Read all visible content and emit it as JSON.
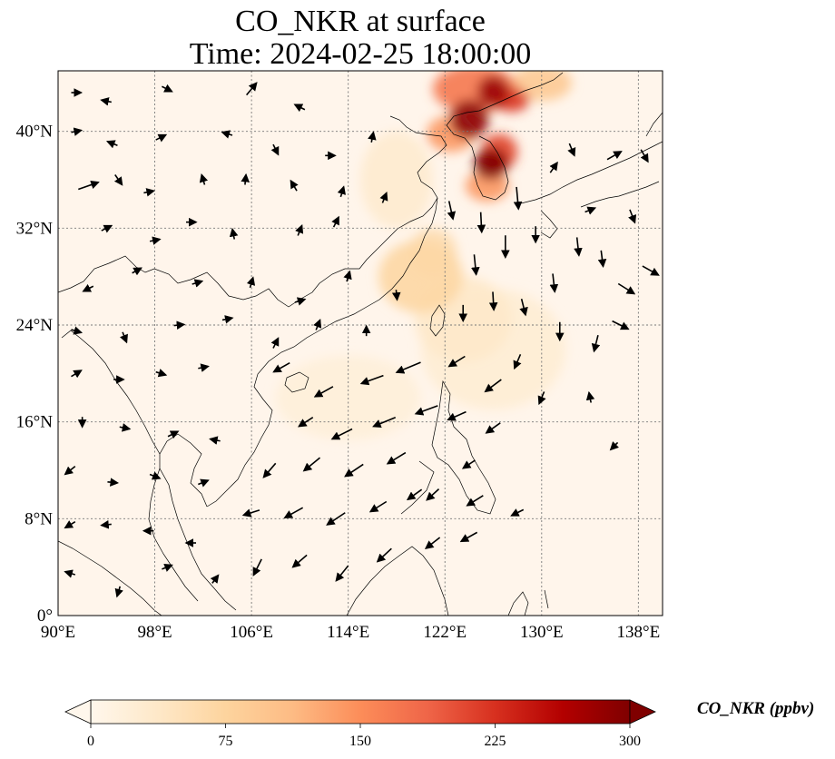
{
  "map": {
    "title_line1": "CO_NKR at surface",
    "title_line2": "Time: 2024-02-25 18:00:00",
    "extent": {
      "lon_min": 90,
      "lon_max": 140,
      "lat_min": 0,
      "lat_max": 45
    },
    "lon_ticks": [
      {
        "value": 90,
        "label": "90°E"
      },
      {
        "value": 98,
        "label": "98°E"
      },
      {
        "value": 106,
        "label": "106°E"
      },
      {
        "value": 114,
        "label": "114°E"
      },
      {
        "value": 122,
        "label": "122°E"
      },
      {
        "value": 130,
        "label": "130°E"
      },
      {
        "value": 138,
        "label": "138°E"
      }
    ],
    "lat_ticks": [
      {
        "value": 0,
        "label": "0°"
      },
      {
        "value": 8,
        "label": "8°N"
      },
      {
        "value": 16,
        "label": "16°N"
      },
      {
        "value": 24,
        "label": "24°N"
      },
      {
        "value": 32,
        "label": "32°N"
      },
      {
        "value": 40,
        "label": "40°N"
      }
    ],
    "gridlines": true,
    "background_color": "#fff5eb",
    "coastline_color": "#000000"
  },
  "colorbar": {
    "label": "CO_NKR (ppbv)",
    "min": 0,
    "max": 300,
    "colormap": "OrRd",
    "extend": "both",
    "ticks": [
      {
        "value": 0,
        "label": "0"
      },
      {
        "value": 75,
        "label": "75"
      },
      {
        "value": 150,
        "label": "150"
      },
      {
        "value": 225,
        "label": "225"
      },
      {
        "value": 300,
        "label": "300"
      }
    ],
    "stops": [
      "#fff7ec",
      "#fee8c8",
      "#fdd49e",
      "#fdbb84",
      "#fc8d59",
      "#ef6548",
      "#d7301f",
      "#b30000",
      "#7f0000"
    ]
  },
  "field_blobs": [
    {
      "lon": 124.5,
      "lat": 43.5,
      "r_lon": 3.5,
      "r_lat": 2.0,
      "value": 170
    },
    {
      "lon": 124.0,
      "lat": 41.0,
      "r_lon": 1.6,
      "r_lat": 1.6,
      "value": 290
    },
    {
      "lon": 126.0,
      "lat": 43.3,
      "r_lon": 1.3,
      "r_lat": 1.3,
      "value": 280
    },
    {
      "lon": 127.5,
      "lat": 42.6,
      "r_lon": 1.5,
      "r_lat": 1.0,
      "value": 220
    },
    {
      "lon": 125.8,
      "lat": 37.3,
      "r_lon": 1.4,
      "r_lat": 1.3,
      "value": 300
    },
    {
      "lon": 126.5,
      "lat": 38.3,
      "r_lon": 1.5,
      "r_lat": 1.5,
      "value": 210
    },
    {
      "lon": 122.5,
      "lat": 39.8,
      "r_lon": 2.0,
      "r_lat": 1.5,
      "value": 140
    },
    {
      "lon": 125.5,
      "lat": 35.5,
      "r_lon": 1.8,
      "r_lat": 1.3,
      "value": 140
    },
    {
      "lon": 130.0,
      "lat": 44.0,
      "r_lon": 2.5,
      "r_lat": 1.5,
      "value": 90
    },
    {
      "lon": 120.0,
      "lat": 28.0,
      "r_lon": 3.5,
      "r_lat": 3.0,
      "value": 70
    },
    {
      "lon": 121.0,
      "lat": 30.0,
      "r_lon": 2.0,
      "r_lat": 2.0,
      "value": 60
    },
    {
      "lon": 123.5,
      "lat": 24.5,
      "r_lon": 4.0,
      "r_lat": 3.5,
      "value": 35
    },
    {
      "lon": 126.0,
      "lat": 22.0,
      "r_lon": 6.0,
      "r_lat": 5.0,
      "value": 25
    },
    {
      "lon": 114.0,
      "lat": 18.0,
      "r_lon": 6.0,
      "r_lat": 3.5,
      "value": 20
    },
    {
      "lon": 118.0,
      "lat": 36.0,
      "r_lon": 3.0,
      "r_lat": 4.0,
      "value": 30
    }
  ],
  "wind_vectors": [
    {
      "lon": 91.5,
      "lat": 43.2,
      "u": 1.0,
      "v": 0.0
    },
    {
      "lon": 94.0,
      "lat": 42.5,
      "u": -1.0,
      "v": 0.2
    },
    {
      "lon": 99.0,
      "lat": 43.5,
      "u": 1.0,
      "v": -0.5
    },
    {
      "lon": 106.0,
      "lat": 43.5,
      "u": 1.0,
      "v": 1.2
    },
    {
      "lon": 110.0,
      "lat": 42.0,
      "u": -1.0,
      "v": 0.5
    },
    {
      "lon": 91.5,
      "lat": 40.0,
      "u": 1.0,
      "v": 0.2
    },
    {
      "lon": 94.5,
      "lat": 39.0,
      "u": -1.0,
      "v": 0.4
    },
    {
      "lon": 98.5,
      "lat": 39.5,
      "u": 1.0,
      "v": 0.5
    },
    {
      "lon": 104.0,
      "lat": 39.8,
      "u": -1.0,
      "v": 0.3
    },
    {
      "lon": 108.0,
      "lat": 38.5,
      "u": 0.5,
      "v": -1.0
    },
    {
      "lon": 112.5,
      "lat": 38.0,
      "u": 1.0,
      "v": 0.0
    },
    {
      "lon": 116.0,
      "lat": 39.5,
      "u": 0.2,
      "v": 1.0
    },
    {
      "lon": 92.5,
      "lat": 35.5,
      "u": 2.0,
      "v": 0.7
    },
    {
      "lon": 95.0,
      "lat": 36.0,
      "u": 0.7,
      "v": -1.0
    },
    {
      "lon": 97.5,
      "lat": 35.0,
      "u": 1.0,
      "v": 0.2
    },
    {
      "lon": 102.0,
      "lat": 36.0,
      "u": -0.3,
      "v": 1.0
    },
    {
      "lon": 105.5,
      "lat": 36.0,
      "u": 0.1,
      "v": 1.0
    },
    {
      "lon": 109.5,
      "lat": 35.5,
      "u": -0.6,
      "v": 1.0
    },
    {
      "lon": 113.5,
      "lat": 35.0,
      "u": 0.3,
      "v": 1.0
    },
    {
      "lon": 117.0,
      "lat": 34.5,
      "u": 0.4,
      "v": 1.0
    },
    {
      "lon": 94.0,
      "lat": 32.0,
      "u": 1.0,
      "v": 0.5
    },
    {
      "lon": 98.0,
      "lat": 31.0,
      "u": 1.0,
      "v": 0.2
    },
    {
      "lon": 101.0,
      "lat": 32.5,
      "u": 1.0,
      "v": 0.0
    },
    {
      "lon": 104.5,
      "lat": 31.5,
      "u": -0.2,
      "v": 1.0
    },
    {
      "lon": 110.0,
      "lat": 31.8,
      "u": 0.4,
      "v": 1.0
    },
    {
      "lon": 113.0,
      "lat": 32.5,
      "u": 0.5,
      "v": 1.0
    },
    {
      "lon": 92.5,
      "lat": 27.0,
      "u": -1.0,
      "v": -0.5
    },
    {
      "lon": 96.5,
      "lat": 28.5,
      "u": 0.9,
      "v": 0.5
    },
    {
      "lon": 101.5,
      "lat": 27.5,
      "u": 1.0,
      "v": 0.3
    },
    {
      "lon": 106.0,
      "lat": 27.5,
      "u": 0.3,
      "v": 1.0
    },
    {
      "lon": 110.0,
      "lat": 26.0,
      "u": 1.0,
      "v": 0.3
    },
    {
      "lon": 114.0,
      "lat": 28.0,
      "u": 0.3,
      "v": 1.0
    },
    {
      "lon": 118.0,
      "lat": 26.5,
      "u": 0.1,
      "v": -1.0
    },
    {
      "lon": 91.5,
      "lat": 23.5,
      "u": 1.0,
      "v": -0.3
    },
    {
      "lon": 95.5,
      "lat": 23.0,
      "u": 0.4,
      "v": -1.0
    },
    {
      "lon": 100.0,
      "lat": 24.0,
      "u": 1.0,
      "v": 0.1
    },
    {
      "lon": 104.0,
      "lat": 24.5,
      "u": 1.0,
      "v": 0.2
    },
    {
      "lon": 108.0,
      "lat": 22.5,
      "u": 0.5,
      "v": 1.0
    },
    {
      "lon": 111.5,
      "lat": 24.0,
      "u": 0.4,
      "v": 1.0
    },
    {
      "lon": 115.5,
      "lat": 23.5,
      "u": 0.0,
      "v": 1.0
    },
    {
      "lon": 91.5,
      "lat": 20.0,
      "u": 1.0,
      "v": 0.6
    },
    {
      "lon": 95.0,
      "lat": 19.5,
      "u": 1.0,
      "v": 0.0
    },
    {
      "lon": 98.5,
      "lat": 20.0,
      "u": 1.0,
      "v": -0.3
    },
    {
      "lon": 102.0,
      "lat": 20.5,
      "u": 1.0,
      "v": 0.2
    },
    {
      "lon": 92.0,
      "lat": 16.0,
      "u": 0.0,
      "v": -1.0
    },
    {
      "lon": 95.5,
      "lat": 15.5,
      "u": 1.0,
      "v": -0.2
    },
    {
      "lon": 99.5,
      "lat": 15.0,
      "u": 1.0,
      "v": 0.5
    },
    {
      "lon": 103.0,
      "lat": 14.5,
      "u": -1.0,
      "v": 0.2
    },
    {
      "lon": 91.0,
      "lat": 12.0,
      "u": -1.0,
      "v": -0.8
    },
    {
      "lon": 94.5,
      "lat": 11.0,
      "u": 1.0,
      "v": -0.1
    },
    {
      "lon": 98.0,
      "lat": 11.5,
      "u": 1.0,
      "v": -0.4
    },
    {
      "lon": 102.0,
      "lat": 11.0,
      "u": 1.0,
      "v": 0.4
    },
    {
      "lon": 91.0,
      "lat": 7.5,
      "u": -1.0,
      "v": -0.6
    },
    {
      "lon": 94.0,
      "lat": 7.5,
      "u": -1.0,
      "v": -0.1
    },
    {
      "lon": 97.5,
      "lat": 7.0,
      "u": -1.0,
      "v": 0.0
    },
    {
      "lon": 101.0,
      "lat": 6.0,
      "u": -1.0,
      "v": 0.0
    },
    {
      "lon": 91.0,
      "lat": 3.5,
      "u": -1.0,
      "v": 0.3
    },
    {
      "lon": 95.0,
      "lat": 2.0,
      "u": -0.3,
      "v": -1.0
    },
    {
      "lon": 99.0,
      "lat": 4.0,
      "u": 1.0,
      "v": 0.4
    },
    {
      "lon": 103.0,
      "lat": 3.0,
      "u": 0.6,
      "v": 0.8
    },
    {
      "lon": 108.5,
      "lat": 20.5,
      "u": -1.6,
      "v": -0.9
    },
    {
      "lon": 112.0,
      "lat": 18.5,
      "u": -1.8,
      "v": -1.0
    },
    {
      "lon": 116.0,
      "lat": 19.5,
      "u": -2.2,
      "v": -0.8
    },
    {
      "lon": 119.0,
      "lat": 20.5,
      "u": -2.4,
      "v": -1.0
    },
    {
      "lon": 110.5,
      "lat": 16.0,
      "u": -1.4,
      "v": -0.9
    },
    {
      "lon": 113.5,
      "lat": 15.0,
      "u": -2.0,
      "v": -1.0
    },
    {
      "lon": 117.0,
      "lat": 16.0,
      "u": -2.2,
      "v": -0.9
    },
    {
      "lon": 120.5,
      "lat": 17.0,
      "u": -2.2,
      "v": -0.8
    },
    {
      "lon": 107.5,
      "lat": 12.0,
      "u": -1.2,
      "v": -1.4
    },
    {
      "lon": 111.0,
      "lat": 12.5,
      "u": -1.6,
      "v": -1.3
    },
    {
      "lon": 114.5,
      "lat": 12.0,
      "u": -1.8,
      "v": -1.2
    },
    {
      "lon": 118.0,
      "lat": 13.0,
      "u": -1.8,
      "v": -1.1
    },
    {
      "lon": 106.0,
      "lat": 8.5,
      "u": -1.6,
      "v": -0.5
    },
    {
      "lon": 109.5,
      "lat": 8.5,
      "u": -1.8,
      "v": -1.0
    },
    {
      "lon": 113.0,
      "lat": 8.0,
      "u": -1.8,
      "v": -1.2
    },
    {
      "lon": 116.5,
      "lat": 9.0,
      "u": -1.6,
      "v": -1.0
    },
    {
      "lon": 119.5,
      "lat": 10.0,
      "u": -1.4,
      "v": -1.0
    },
    {
      "lon": 110.0,
      "lat": 4.5,
      "u": -1.4,
      "v": -1.2
    },
    {
      "lon": 113.5,
      "lat": 3.5,
      "u": -1.2,
      "v": -1.5
    },
    {
      "lon": 117.0,
      "lat": 5.0,
      "u": -1.4,
      "v": -1.3
    },
    {
      "lon": 106.5,
      "lat": 4.0,
      "u": -0.8,
      "v": -1.6
    },
    {
      "lon": 123.0,
      "lat": 21.0,
      "u": -1.6,
      "v": -1.0
    },
    {
      "lon": 126.0,
      "lat": 19.0,
      "u": -1.6,
      "v": -1.2
    },
    {
      "lon": 123.0,
      "lat": 16.5,
      "u": -1.8,
      "v": -0.8
    },
    {
      "lon": 126.0,
      "lat": 15.5,
      "u": -1.4,
      "v": -1.0
    },
    {
      "lon": 124.0,
      "lat": 12.5,
      "u": -1.2,
      "v": -0.8
    },
    {
      "lon": 121.0,
      "lat": 10.0,
      "u": -1.2,
      "v": -1.1
    },
    {
      "lon": 124.5,
      "lat": 9.5,
      "u": -1.6,
      "v": -1.0
    },
    {
      "lon": 121.0,
      "lat": 6.0,
      "u": -1.4,
      "v": -1.1
    },
    {
      "lon": 124.0,
      "lat": 6.5,
      "u": -1.6,
      "v": -0.9
    },
    {
      "lon": 128.0,
      "lat": 8.5,
      "u": -1.2,
      "v": -0.6
    },
    {
      "lon": 124.5,
      "lat": 29.0,
      "u": 0.2,
      "v": -2.0
    },
    {
      "lon": 127.0,
      "lat": 30.5,
      "u": 0.0,
      "v": -2.2
    },
    {
      "lon": 129.5,
      "lat": 31.5,
      "u": 0.0,
      "v": -1.6
    },
    {
      "lon": 125.0,
      "lat": 32.5,
      "u": 0.1,
      "v": -2.0
    },
    {
      "lon": 128.0,
      "lat": 34.5,
      "u": 0.2,
      "v": -2.2
    },
    {
      "lon": 122.5,
      "lat": 33.5,
      "u": 0.4,
      "v": -1.8
    },
    {
      "lon": 123.5,
      "lat": 25.0,
      "u": 0.0,
      "v": -1.6
    },
    {
      "lon": 126.0,
      "lat": 26.0,
      "u": 0.1,
      "v": -1.8
    },
    {
      "lon": 128.5,
      "lat": 25.5,
      "u": 0.4,
      "v": -1.6
    },
    {
      "lon": 131.0,
      "lat": 27.5,
      "u": 0.2,
      "v": -1.8
    },
    {
      "lon": 131.5,
      "lat": 23.5,
      "u": 0.0,
      "v": -1.8
    },
    {
      "lon": 134.5,
      "lat": 22.5,
      "u": -0.4,
      "v": -1.6
    },
    {
      "lon": 128.0,
      "lat": 21.0,
      "u": -0.6,
      "v": -1.4
    },
    {
      "lon": 130.0,
      "lat": 18.0,
      "u": -0.5,
      "v": -1.2
    },
    {
      "lon": 133.0,
      "lat": 30.5,
      "u": 0.2,
      "v": -1.8
    },
    {
      "lon": 135.0,
      "lat": 29.5,
      "u": 0.2,
      "v": -1.6
    },
    {
      "lon": 137.0,
      "lat": 27.0,
      "u": 1.6,
      "v": -1.0
    },
    {
      "lon": 136.5,
      "lat": 24.0,
      "u": 1.6,
      "v": -0.8
    },
    {
      "lon": 139.0,
      "lat": 28.5,
      "u": 1.6,
      "v": -0.9
    },
    {
      "lon": 134.0,
      "lat": 33.5,
      "u": 1.0,
      "v": 0.4
    },
    {
      "lon": 137.5,
      "lat": 33.0,
      "u": 0.5,
      "v": -1.3
    },
    {
      "lon": 136.0,
      "lat": 38.0,
      "u": 1.4,
      "v": 0.8
    },
    {
      "lon": 138.5,
      "lat": 38.0,
      "u": 0.7,
      "v": -1.2
    },
    {
      "lon": 132.5,
      "lat": 38.5,
      "u": 0.5,
      "v": -1.2
    },
    {
      "lon": 131.0,
      "lat": 37.0,
      "u": 0.7,
      "v": 1.0
    },
    {
      "lon": 134.0,
      "lat": 18.0,
      "u": -0.2,
      "v": 1.0
    },
    {
      "lon": 136.0,
      "lat": 14.0,
      "u": -0.7,
      "v": -0.7
    }
  ]
}
